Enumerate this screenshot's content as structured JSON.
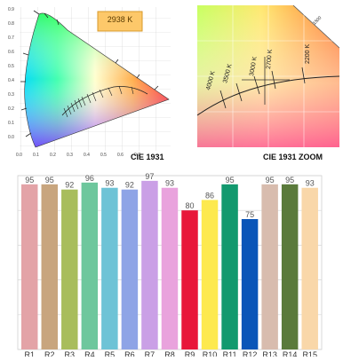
{
  "cie_main": {
    "caption": "CIE 1931",
    "cct_readout": "2938 K",
    "x_ticks": [
      "0.0",
      "0.1",
      "0.2",
      "0.3",
      "0.4",
      "0.5",
      "0.6",
      "0.7"
    ],
    "y_ticks": [
      "0.9",
      "0.8",
      "0.7",
      "0.6",
      "0.5",
      "0.4",
      "0.3",
      "0.2",
      "0.1",
      "0.0"
    ]
  },
  "cie_zoom": {
    "caption": "CIE 1931 ZOOM",
    "cct_lines": [
      "4000 K",
      "3500 K",
      "3000 K",
      "2700 K",
      "2200 K"
    ],
    "corner_label": "1500"
  },
  "cri": {
    "colors": {
      "R1": "#e3a3a7",
      "R2": "#c8a57e",
      "R3": "#a8bd5c",
      "R4": "#6ec79d",
      "R5": "#6ec3d6",
      "R6": "#8ea4e6",
      "R7": "#caa0e6",
      "R8": "#e9a3dd",
      "R9": "#e8173a",
      "R10": "#fde94f",
      "R11": "#12996e",
      "R12": "#0a55b8",
      "R13": "#d8bcae",
      "R14": "#5a7a3b",
      "R15": "#f9d7a9"
    }
  },
  "chart_data": {
    "type": "bar",
    "categories": [
      "R1",
      "R2",
      "R3",
      "R4",
      "R5",
      "R6",
      "R7",
      "R8",
      "R9",
      "R10",
      "R11",
      "R12",
      "R13",
      "R14",
      "R15"
    ],
    "values": [
      95,
      95,
      92,
      96,
      93,
      92,
      97,
      93,
      80,
      86,
      95,
      75,
      95,
      95,
      93
    ],
    "ylim": [
      0,
      100
    ],
    "grid": true
  }
}
